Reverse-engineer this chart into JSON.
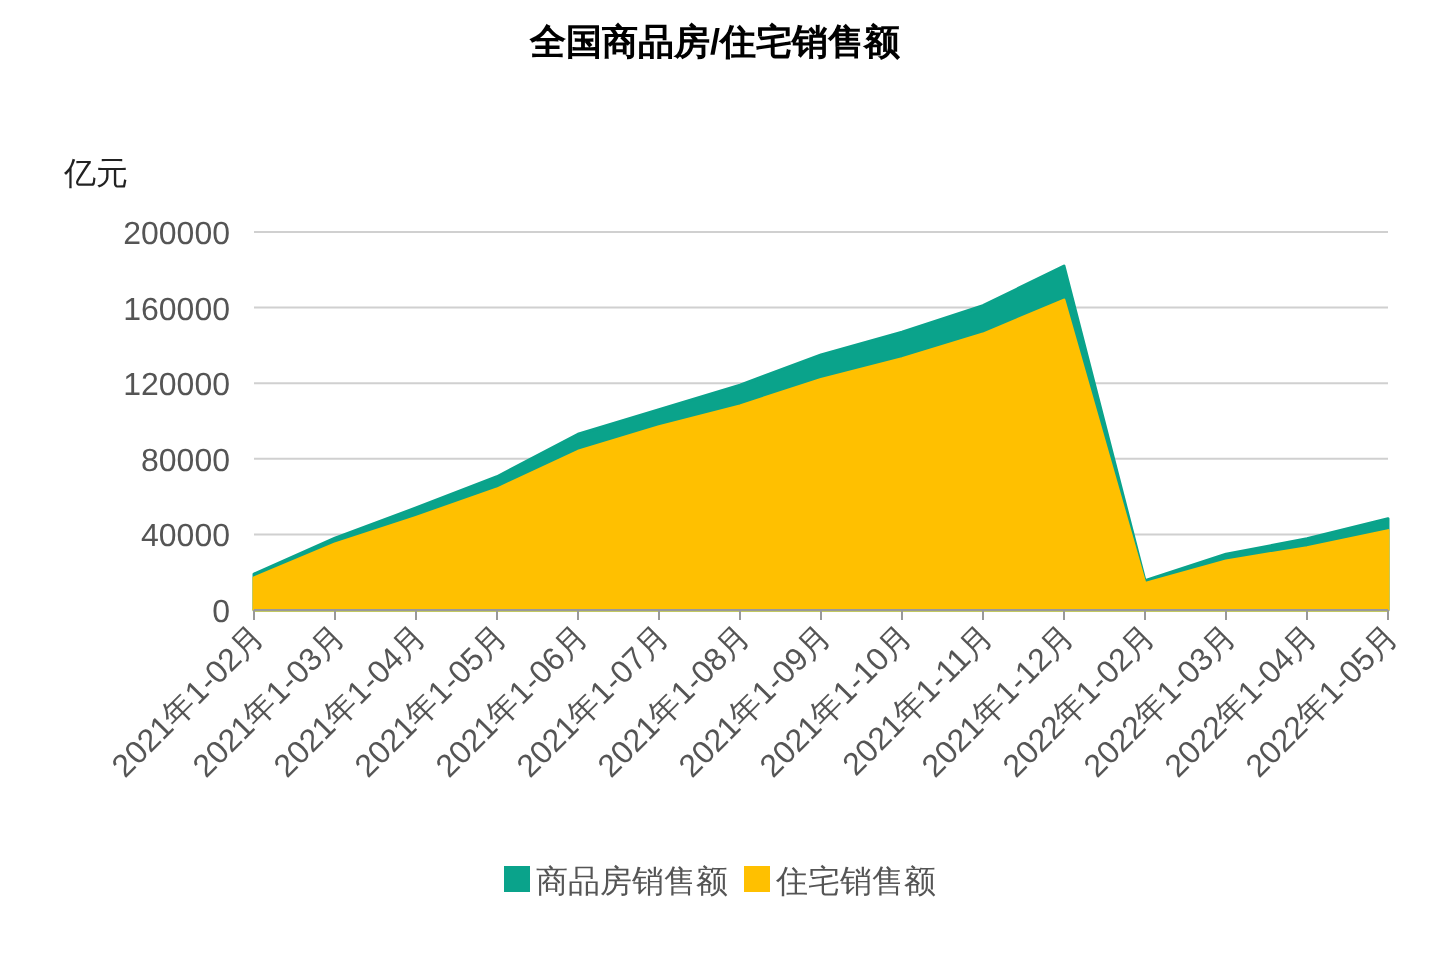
{
  "chart_data": {
    "type": "area",
    "title": "全国商品房/住宅销售额",
    "ylabel": "亿元",
    "categories": [
      "2021年1-02月",
      "2021年1-03月",
      "2021年1-04月",
      "2021年1-05月",
      "2021年1-06月",
      "2021年1-07月",
      "2021年1-08月",
      "2021年1-09月",
      "2021年1-10月",
      "2021年1-11月",
      "2021年1-12月",
      "2022年1-02月",
      "2022年1-03月",
      "2022年1-04月",
      "2022年1-05月"
    ],
    "series": [
      {
        "name": "商品房销售额",
        "color": "#0aa38b",
        "values": [
          19000,
          38000,
          54000,
          70500,
          93000,
          106000,
          119000,
          135000,
          147000,
          161000,
          182000,
          15500,
          29500,
          37700,
          48300
        ]
      },
      {
        "name": "住宅销售额",
        "color": "#ffc000",
        "values": [
          17000,
          35000,
          49000,
          64000,
          84000,
          97000,
          108000,
          122000,
          133000,
          146000,
          164000,
          14000,
          26000,
          33000,
          42000
        ]
      }
    ],
    "ylim": [
      0,
      200000
    ],
    "yticks": [
      0,
      40000,
      80000,
      120000,
      160000,
      200000
    ],
    "grid": "y",
    "legend": "bottom"
  }
}
